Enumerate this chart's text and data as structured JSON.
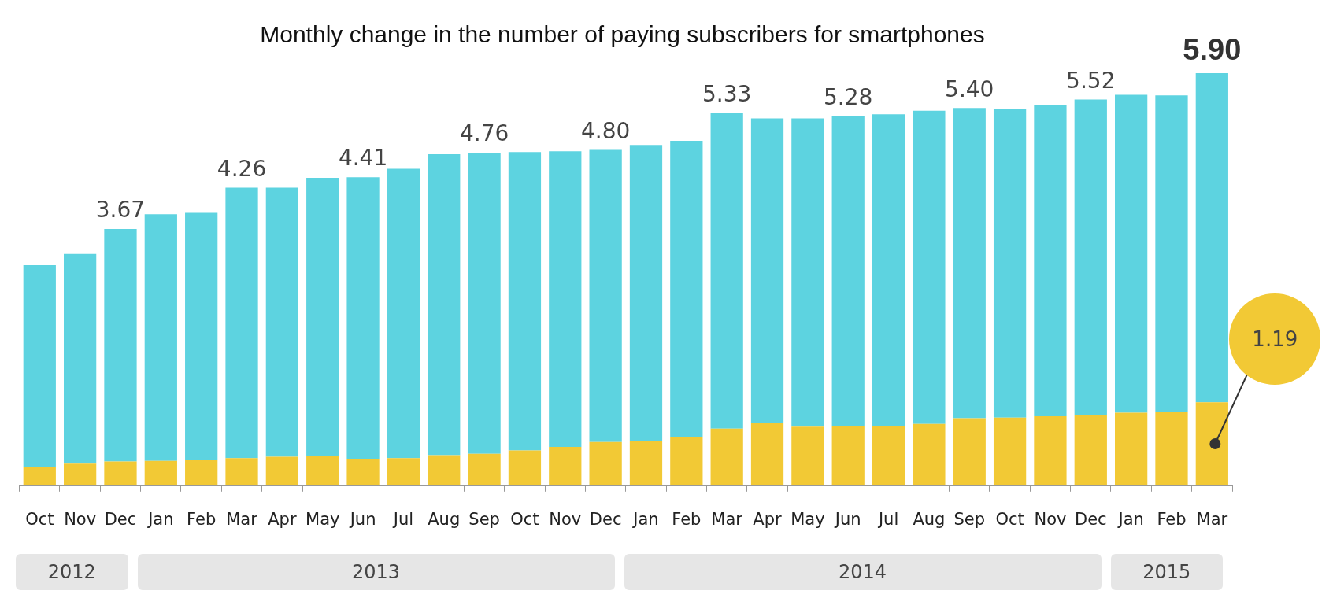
{
  "chart_data": {
    "type": "bar",
    "title": "Monthly change in the number of paying subscribers for smartphones",
    "categories": [
      "Oct",
      "Nov",
      "Dec",
      "Jan",
      "Feb",
      "Mar",
      "Apr",
      "May",
      "Jun",
      "Jul",
      "Aug",
      "Sep",
      "Oct",
      "Nov",
      "Dec",
      "Jan",
      "Feb",
      "Mar",
      "Apr",
      "May",
      "Jun",
      "Jul",
      "Aug",
      "Sep",
      "Oct",
      "Nov",
      "Dec",
      "Jan",
      "Feb",
      "Mar"
    ],
    "stacked": true,
    "series": [
      {
        "color": "#f2c935",
        "values": [
          0.26,
          0.31,
          0.34,
          0.35,
          0.36,
          0.39,
          0.41,
          0.42,
          0.38,
          0.39,
          0.43,
          0.45,
          0.5,
          0.55,
          0.62,
          0.64,
          0.69,
          0.81,
          0.89,
          0.84,
          0.85,
          0.85,
          0.88,
          0.96,
          0.97,
          0.99,
          1.0,
          1.04,
          1.05,
          1.19
        ],
        "value_labels": [
          null,
          null,
          null,
          null,
          null,
          null,
          null,
          null,
          null,
          null,
          null,
          null,
          null,
          null,
          null,
          null,
          null,
          null,
          null,
          null,
          null,
          null,
          null,
          null,
          null,
          null,
          null,
          null,
          null,
          "1.19"
        ]
      },
      {
        "color": "#5dd3e0",
        "values": [
          2.89,
          3.0,
          3.33,
          3.53,
          3.54,
          3.87,
          3.85,
          3.98,
          4.03,
          4.14,
          4.31,
          4.31,
          4.27,
          4.23,
          4.18,
          4.23,
          4.24,
          4.52,
          4.36,
          4.41,
          4.43,
          4.46,
          4.48,
          4.44,
          4.42,
          4.45,
          4.52,
          4.55,
          4.53,
          4.71
        ]
      }
    ],
    "totals": [
      null,
      null,
      "3.67",
      null,
      null,
      "4.26",
      null,
      null,
      "4.41",
      null,
      null,
      "4.76",
      null,
      null,
      "4.80",
      null,
      null,
      "5.33",
      null,
      null,
      "5.28",
      null,
      null,
      "5.40",
      null,
      null,
      "5.52",
      null,
      null,
      "5.90"
    ],
    "annotations": [
      "2012",
      "2013",
      "2014",
      "2015"
    ],
    "grid": false,
    "legend": false
  }
}
